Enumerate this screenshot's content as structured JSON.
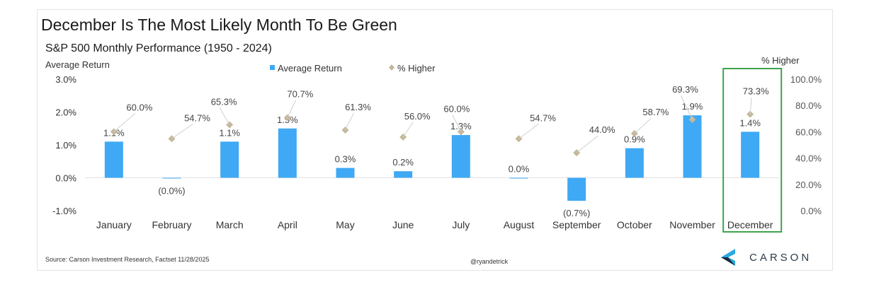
{
  "title": "December Is The Most Likely Month To Be Green",
  "subtitle": "S&P 500 Monthly Performance (1950 - 2024)",
  "y_left_label": "Average Return",
  "y_right_label": "% Higher",
  "source": "Source: Carson Investment Research, Factset 11/28/2025",
  "handle": "@ryandetrick",
  "logo_text": "CARSON",
  "logo_icon": "carson-chevron-logo",
  "colors": {
    "bar": "#3fa9f5",
    "marker": "#c4b89a",
    "highlight_box": "#3fa34d",
    "logo": "#2aa8e0"
  },
  "chart_data": {
    "type": "bar",
    "categories": [
      "January",
      "February",
      "March",
      "April",
      "May",
      "June",
      "July",
      "August",
      "September",
      "October",
      "November",
      "December"
    ],
    "series": [
      {
        "name": "Average Return",
        "axis": "left",
        "kind": "bar",
        "values": [
          1.1,
          -0.02,
          1.1,
          1.5,
          0.3,
          0.2,
          1.3,
          0.0,
          -0.7,
          0.9,
          1.9,
          1.4
        ],
        "labels": [
          "1.1%",
          "(0.0%)",
          "1.1%",
          "1.5%",
          "0.3%",
          "0.2%",
          "1.3%",
          "0.0%",
          "(0.7%)",
          "0.9%",
          "1.9%",
          "1.4%"
        ]
      },
      {
        "name": "% Higher",
        "axis": "right",
        "kind": "scatter",
        "marker": "diamond",
        "values": [
          60.0,
          54.7,
          65.3,
          70.7,
          61.3,
          56.0,
          60.0,
          54.7,
          44.0,
          58.7,
          69.3,
          73.3
        ],
        "labels": [
          "60.0%",
          "54.7%",
          "65.3%",
          "70.7%",
          "61.3%",
          "56.0%",
          "60.0%",
          "54.7%",
          "44.0%",
          "58.7%",
          "69.3%",
          "73.3%"
        ]
      }
    ],
    "y_left": {
      "label": "Average Return",
      "ylim": [
        -1.0,
        3.0
      ],
      "ticks": [
        "3.0%",
        "2.0%",
        "1.0%",
        "0.0%",
        "-1.0%"
      ],
      "tick_values": [
        3,
        2,
        1,
        0,
        -1
      ]
    },
    "y_right": {
      "label": "% Higher",
      "ylim": [
        0,
        100
      ],
      "ticks": [
        "100.0%",
        "80.0%",
        "60.0%",
        "40.0%",
        "20.0%",
        "0.0%"
      ],
      "tick_values": [
        100,
        80,
        60,
        40,
        20,
        0
      ]
    },
    "legend": {
      "placement": "top-center",
      "entries": [
        "Average Return",
        "% Higher"
      ]
    },
    "highlight_category": "December",
    "grid": false
  }
}
